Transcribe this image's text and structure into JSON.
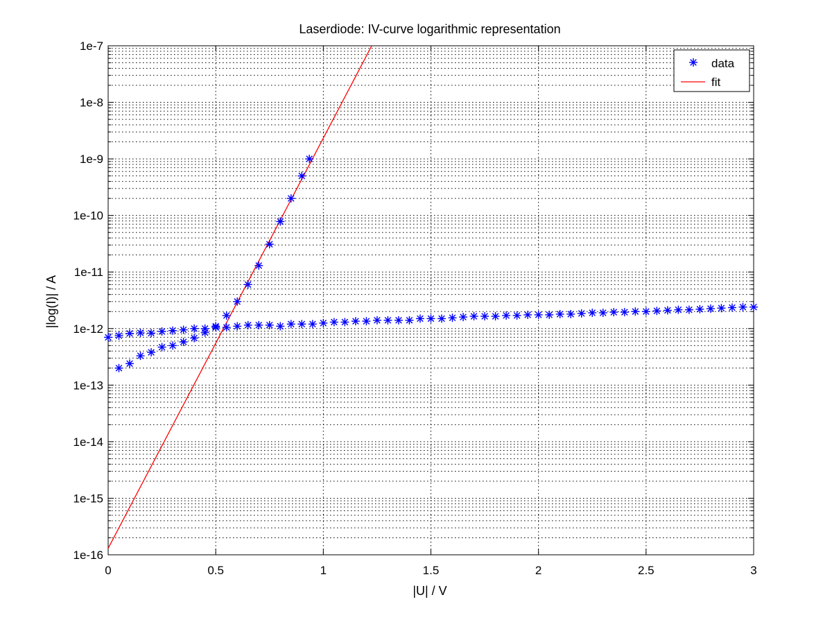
{
  "chart_data": {
    "type": "scatter",
    "title": "Laserdiode: IV-curve logarithmic representation",
    "xlabel": "|U| / V",
    "ylabel": "|log(I)| / A",
    "xlim": [
      0,
      3
    ],
    "ylim": [
      1e-16,
      1e-07
    ],
    "yscale": "log",
    "grid": true,
    "legend_position": "top-right",
    "x_ticks": [
      0,
      0.5,
      1,
      1.5,
      2,
      2.5,
      3
    ],
    "x_tick_labels": [
      "0",
      "0.5",
      "1",
      "1.5",
      "2",
      "2.5",
      "3"
    ],
    "y_ticks": [
      1e-16,
      1e-15,
      1e-14,
      1e-13,
      1e-12,
      1e-11,
      1e-10,
      1e-09,
      1e-08,
      1e-07
    ],
    "y_tick_labels": [
      "1e-16",
      "1e-15",
      "1e-14",
      "1e-13",
      "1e-12",
      "1e-11",
      "1e-10",
      "1e-9",
      "1e-8",
      "1e-7"
    ],
    "colors": {
      "data": "#0000ff",
      "fit": "#ff0000",
      "grid": "#000000",
      "axes": "#000000"
    },
    "series": [
      {
        "name": "data",
        "kind": "scatter",
        "marker": "asterisk",
        "points": [
          [
            0.0,
            7e-13
          ],
          [
            0.05,
            7.5e-13
          ],
          [
            0.1,
            8.2e-13
          ],
          [
            0.15,
            8.4e-13
          ],
          [
            0.2,
            8.3e-13
          ],
          [
            0.25,
            8.9e-13
          ],
          [
            0.3,
            9.2e-13
          ],
          [
            0.35,
            9.5e-13
          ],
          [
            0.4,
            1e-12
          ],
          [
            0.45,
            1e-12
          ],
          [
            0.5,
            1.1e-12
          ],
          [
            0.55,
            1.05e-12
          ],
          [
            0.6,
            1.1e-12
          ],
          [
            0.65,
            1.15e-12
          ],
          [
            0.7,
            1.15e-12
          ],
          [
            0.75,
            1.15e-12
          ],
          [
            0.8,
            1.1e-12
          ],
          [
            0.85,
            1.2e-12
          ],
          [
            0.9,
            1.2e-12
          ],
          [
            0.95,
            1.2e-12
          ],
          [
            1.0,
            1.25e-12
          ],
          [
            1.05,
            1.3e-12
          ],
          [
            1.1,
            1.3e-12
          ],
          [
            1.15,
            1.35e-12
          ],
          [
            1.2,
            1.35e-12
          ],
          [
            1.25,
            1.4e-12
          ],
          [
            1.3,
            1.4e-12
          ],
          [
            1.35,
            1.4e-12
          ],
          [
            1.4,
            1.4e-12
          ],
          [
            1.45,
            1.5e-12
          ],
          [
            1.5,
            1.5e-12
          ],
          [
            1.55,
            1.5e-12
          ],
          [
            1.6,
            1.55e-12
          ],
          [
            1.65,
            1.6e-12
          ],
          [
            1.7,
            1.65e-12
          ],
          [
            1.75,
            1.65e-12
          ],
          [
            1.8,
            1.65e-12
          ],
          [
            1.85,
            1.7e-12
          ],
          [
            1.9,
            1.7e-12
          ],
          [
            1.95,
            1.75e-12
          ],
          [
            2.0,
            1.75e-12
          ],
          [
            2.05,
            1.75e-12
          ],
          [
            2.1,
            1.8e-12
          ],
          [
            2.15,
            1.8e-12
          ],
          [
            2.2,
            1.85e-12
          ],
          [
            2.25,
            1.9e-12
          ],
          [
            2.3,
            1.9e-12
          ],
          [
            2.35,
            1.95e-12
          ],
          [
            2.4,
            1.95e-12
          ],
          [
            2.45,
            2e-12
          ],
          [
            2.5,
            2e-12
          ],
          [
            2.55,
            2.05e-12
          ],
          [
            2.6,
            2.1e-12
          ],
          [
            2.65,
            2.15e-12
          ],
          [
            2.7,
            2.15e-12
          ],
          [
            2.75,
            2.2e-12
          ],
          [
            2.8,
            2.25e-12
          ],
          [
            2.85,
            2.3e-12
          ],
          [
            2.9,
            2.35e-12
          ],
          [
            2.95,
            2.4e-12
          ],
          [
            3.0,
            2.4e-12
          ],
          [
            0.05,
            2e-13
          ],
          [
            0.1,
            2.4e-13
          ],
          [
            0.15,
            3.3e-13
          ],
          [
            0.2,
            3.8e-13
          ],
          [
            0.25,
            4.7e-13
          ],
          [
            0.3,
            5e-13
          ],
          [
            0.35,
            5.8e-13
          ],
          [
            0.4,
            6.8e-13
          ],
          [
            0.45,
            8.5e-13
          ],
          [
            0.5,
            1.05e-12
          ],
          [
            0.55,
            1.7e-12
          ],
          [
            0.6,
            3e-12
          ],
          [
            0.65,
            6e-12
          ],
          [
            0.7,
            1.3e-11
          ],
          [
            0.75,
            3.1e-11
          ],
          [
            0.8,
            7.8e-11
          ],
          [
            0.85,
            2e-10
          ],
          [
            0.9,
            5e-10
          ],
          [
            0.935,
            1e-09
          ]
        ]
      },
      {
        "name": "fit",
        "kind": "line",
        "points": [
          [
            0.0,
            1.3e-16
          ],
          [
            1.225,
            1e-07
          ]
        ]
      }
    ]
  }
}
